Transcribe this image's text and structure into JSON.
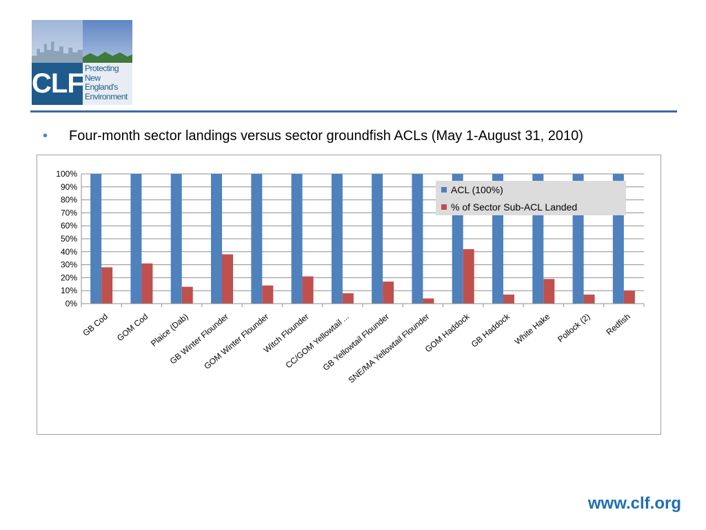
{
  "logo": {
    "abbr": "CLF",
    "tagline": [
      "Protecting",
      "New England's",
      "Environment"
    ]
  },
  "headline": "Four-month sector landings versus sector groundfish ACLs (May 1-August 31, 2010)",
  "footer_url": "www.clf.org",
  "chart_data": {
    "type": "bar",
    "categories": [
      "GB Cod",
      "GOM Cod",
      "Plaice (Dab)",
      "GB Winter Flounder",
      "GOM Winter Flounder",
      "Witch Flounder",
      "CC/GOM Yellowtail ...",
      "GB Yellowtail Flounder",
      "SNE/MA Yellowtail Flounder",
      "GOM Haddock",
      "GB Haddock",
      "White Hake",
      "Pollock (2)",
      "Redfish"
    ],
    "series": [
      {
        "name": "ACL (100%)",
        "color": "#4f81bd",
        "values": [
          100,
          100,
          100,
          100,
          100,
          100,
          100,
          100,
          100,
          100,
          100,
          100,
          100,
          100
        ]
      },
      {
        "name": "% of Sector Sub-ACL Landed",
        "color": "#c0504d",
        "values": [
          28,
          31,
          13,
          38,
          14,
          21,
          8,
          17,
          4,
          42,
          7,
          19,
          7,
          10
        ]
      }
    ],
    "y_ticks": [
      "0%",
      "10%",
      "20%",
      "30%",
      "40%",
      "50%",
      "60%",
      "70%",
      "80%",
      "90%",
      "100%"
    ],
    "ylim": [
      0,
      100
    ],
    "grid": true,
    "legend_position": "top-right"
  }
}
